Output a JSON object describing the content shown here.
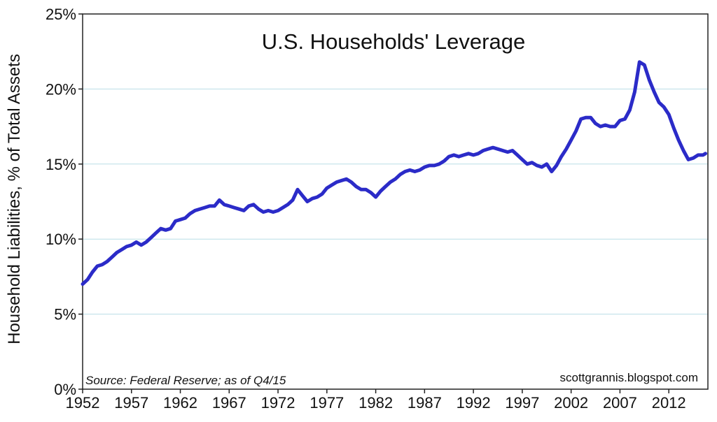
{
  "chart_data": {
    "type": "line",
    "title": "U.S. Households' Leverage",
    "ylabel": "Household Liabilities, % of Total Assets",
    "xlabel": "",
    "source_note": "Source: Federal Reserve; as of Q4/15",
    "credit": "scottgrannis.blogspot.com",
    "xlim": [
      1952,
      2016
    ],
    "ylim": [
      0,
      25
    ],
    "x_ticks": [
      1952,
      1957,
      1962,
      1967,
      1972,
      1977,
      1982,
      1987,
      1992,
      1997,
      2002,
      2007,
      2012
    ],
    "x_tick_labels": [
      "1952",
      "1957",
      "1962",
      "1967",
      "1972",
      "1977",
      "1982",
      "1987",
      "1992",
      "1997",
      "2002",
      "2007",
      "2012"
    ],
    "y_ticks": [
      0,
      5,
      10,
      15,
      20,
      25
    ],
    "y_tick_labels": [
      "0%",
      "5%",
      "10%",
      "15%",
      "20%",
      "25%"
    ],
    "grid": "horizontal",
    "series": [
      {
        "color": "#2b2bc8",
        "x": [
          1952.0,
          1952.5,
          1953.0,
          1953.5,
          1954.0,
          1954.5,
          1955.0,
          1955.5,
          1956.0,
          1956.5,
          1957.0,
          1957.5,
          1958.0,
          1958.5,
          1959.0,
          1959.5,
          1960.0,
          1960.5,
          1961.0,
          1961.5,
          1962.0,
          1962.5,
          1963.0,
          1963.5,
          1964.0,
          1964.5,
          1965.0,
          1965.5,
          1966.0,
          1966.5,
          1967.0,
          1967.5,
          1968.0,
          1968.5,
          1969.0,
          1969.5,
          1970.0,
          1970.5,
          1971.0,
          1971.5,
          1972.0,
          1972.5,
          1973.0,
          1973.5,
          1974.0,
          1974.5,
          1975.0,
          1975.5,
          1976.0,
          1976.5,
          1977.0,
          1977.5,
          1978.0,
          1978.5,
          1979.0,
          1979.5,
          1980.0,
          1980.5,
          1981.0,
          1981.5,
          1982.0,
          1982.5,
          1983.0,
          1983.5,
          1984.0,
          1984.5,
          1985.0,
          1985.5,
          1986.0,
          1986.5,
          1987.0,
          1987.5,
          1988.0,
          1988.5,
          1989.0,
          1989.5,
          1990.0,
          1990.5,
          1991.0,
          1991.5,
          1992.0,
          1992.5,
          1993.0,
          1993.5,
          1994.0,
          1994.5,
          1995.0,
          1995.5,
          1996.0,
          1996.5,
          1997.0,
          1997.5,
          1998.0,
          1998.5,
          1999.0,
          1999.5,
          2000.0,
          2000.5,
          2001.0,
          2001.5,
          2002.0,
          2002.5,
          2003.0,
          2003.5,
          2004.0,
          2004.5,
          2005.0,
          2005.5,
          2006.0,
          2006.5,
          2007.0,
          2007.5,
          2008.0,
          2008.5,
          2009.0,
          2009.5,
          2010.0,
          2010.5,
          2011.0,
          2011.5,
          2012.0,
          2012.5,
          2013.0,
          2013.5,
          2014.0,
          2014.5,
          2015.0,
          2015.5,
          2015.75
        ],
        "y": [
          7.0,
          7.3,
          7.8,
          8.2,
          8.3,
          8.5,
          8.8,
          9.1,
          9.3,
          9.5,
          9.6,
          9.8,
          9.6,
          9.8,
          10.1,
          10.4,
          10.7,
          10.6,
          10.7,
          11.2,
          11.3,
          11.4,
          11.7,
          11.9,
          12.0,
          12.1,
          12.2,
          12.2,
          12.6,
          12.3,
          12.2,
          12.1,
          12.0,
          11.9,
          12.2,
          12.3,
          12.0,
          11.8,
          11.9,
          11.8,
          11.9,
          12.1,
          12.3,
          12.6,
          13.3,
          12.9,
          12.5,
          12.7,
          12.8,
          13.0,
          13.4,
          13.6,
          13.8,
          13.9,
          14.0,
          13.8,
          13.5,
          13.3,
          13.3,
          13.1,
          12.8,
          13.2,
          13.5,
          13.8,
          14.0,
          14.3,
          14.5,
          14.6,
          14.5,
          14.6,
          14.8,
          14.9,
          14.9,
          15.0,
          15.2,
          15.5,
          15.6,
          15.5,
          15.6,
          15.7,
          15.6,
          15.7,
          15.9,
          16.0,
          16.1,
          16.0,
          15.9,
          15.8,
          15.9,
          15.6,
          15.3,
          15.0,
          15.1,
          14.9,
          14.8,
          15.0,
          14.5,
          14.9,
          15.5,
          16.0,
          16.6,
          17.2,
          18.0,
          18.1,
          18.1,
          17.7,
          17.5,
          17.6,
          17.5,
          17.5,
          17.9,
          18.0,
          18.6,
          19.8,
          21.8,
          21.6,
          20.6,
          19.8,
          19.1,
          18.8,
          18.3,
          17.4,
          16.6,
          15.9,
          15.3,
          15.4,
          15.6,
          15.6,
          15.7
        ]
      }
    ]
  }
}
